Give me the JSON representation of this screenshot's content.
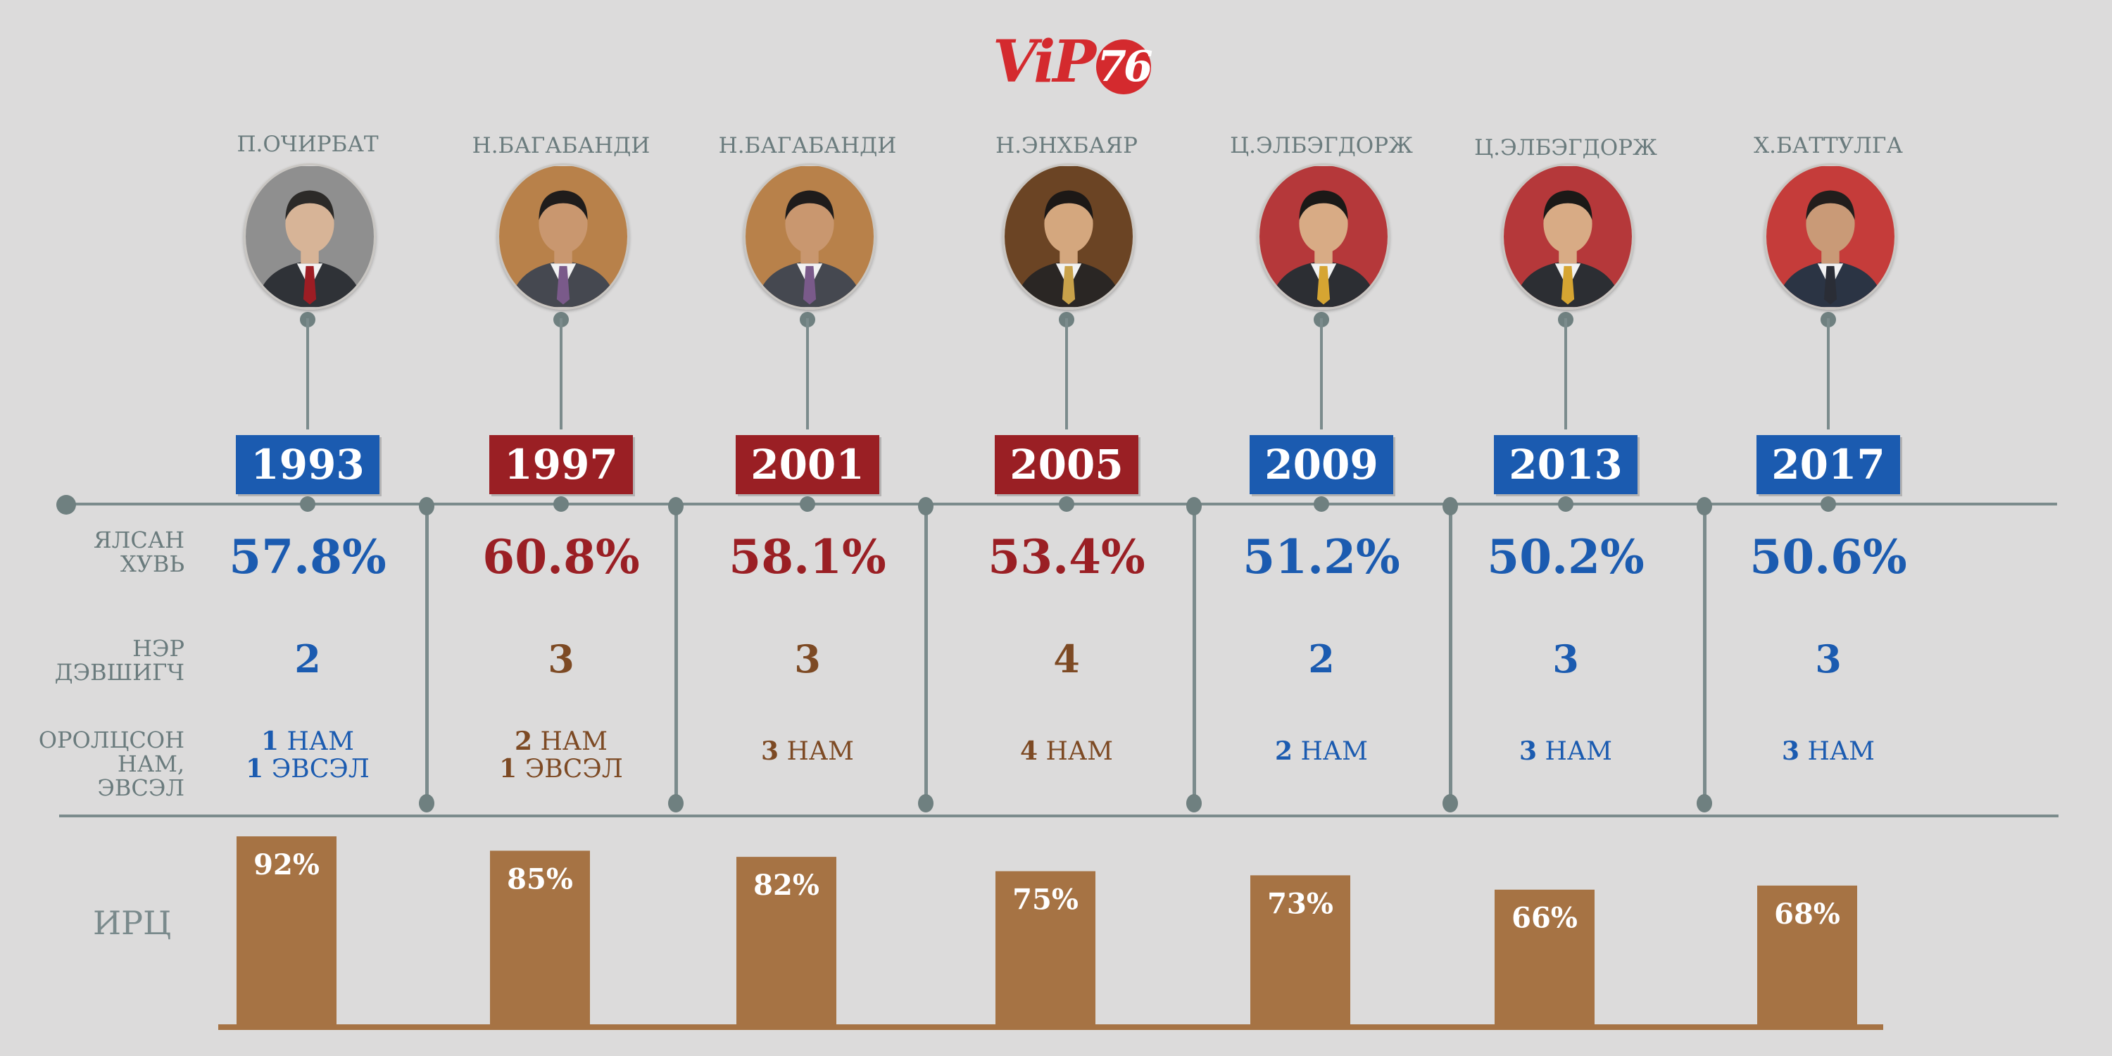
{
  "logo": {
    "text": "ViP",
    "number": "76"
  },
  "colors": {
    "blue": "#1b5bb0",
    "red": "#9a1f24",
    "brown": "#7d4a24",
    "bar": "#a67344",
    "line": "#7b8b8c",
    "label": "#6a7b7d"
  },
  "row_labels": {
    "win_percent": [
      "ЯЛСАН",
      "ХУВЬ"
    ],
    "candidates": [
      "НЭР",
      "ДЭВШИГЧ"
    ],
    "parties": [
      "ОРОЛЦСОН",
      "НАМ,",
      "ЭВСЭЛ"
    ],
    "turnout": "ИРЦ"
  },
  "elections": [
    {
      "name": "П.ОЧИРБАТ",
      "year": "1993",
      "year_color": "blue",
      "win_pct": "57.8%",
      "pct_color": "blue",
      "candidates": "2",
      "cand_color": "blue",
      "party_lines": [
        {
          "num": "1",
          "text": "НАМ"
        },
        {
          "num": "1",
          "text": "ЭВСЭЛ"
        }
      ],
      "party_color": "blue",
      "turnout_label": "92%",
      "portrait_icon": "portrait-ochirbat-icon"
    },
    {
      "name": "Н.БАГАБАНДИ",
      "year": "1997",
      "year_color": "red",
      "win_pct": "60.8%",
      "pct_color": "red",
      "candidates": "3",
      "cand_color": "brown",
      "party_lines": [
        {
          "num": "2",
          "text": "НАМ"
        },
        {
          "num": "1",
          "text": "ЭВСЭЛ"
        }
      ],
      "party_color": "brown",
      "turnout_label": "85%",
      "portrait_icon": "portrait-bagabandi-icon"
    },
    {
      "name": "Н.БАГАБАНДИ",
      "year": "2001",
      "year_color": "red",
      "win_pct": "58.1%",
      "pct_color": "red",
      "candidates": "3",
      "cand_color": "brown",
      "party_lines": [
        {
          "num": "3",
          "text": "НАМ"
        }
      ],
      "party_color": "brown",
      "turnout_label": "82%",
      "portrait_icon": "portrait-bagabandi-icon"
    },
    {
      "name": "Н.ЭНХБАЯР",
      "year": "2005",
      "year_color": "red",
      "win_pct": "53.4%",
      "pct_color": "red",
      "candidates": "4",
      "cand_color": "brown",
      "party_lines": [
        {
          "num": "4",
          "text": "НАМ"
        }
      ],
      "party_color": "brown",
      "turnout_label": "75%",
      "portrait_icon": "portrait-enkhbayar-icon"
    },
    {
      "name": "Ц.ЭЛБЭГДОРЖ",
      "year": "2009",
      "year_color": "blue",
      "win_pct": "51.2%",
      "pct_color": "blue",
      "candidates": "2",
      "cand_color": "blue",
      "party_lines": [
        {
          "num": "2",
          "text": "НАМ"
        }
      ],
      "party_color": "blue",
      "turnout_label": "73%",
      "portrait_icon": "portrait-elbegdorj-icon"
    },
    {
      "name": "Ц.ЭЛБЭГДОРЖ",
      "year": "2013",
      "year_color": "blue",
      "win_pct": "50.2%",
      "pct_color": "blue",
      "candidates": "3",
      "cand_color": "blue",
      "party_lines": [
        {
          "num": "3",
          "text": "НАМ"
        }
      ],
      "party_color": "blue",
      "turnout_label": "66%",
      "portrait_icon": "portrait-elbegdorj-icon"
    },
    {
      "name": "Х.БАТТУЛГА",
      "year": "2017",
      "year_color": "blue",
      "win_pct": "50.6%",
      "pct_color": "blue",
      "candidates": "3",
      "cand_color": "blue",
      "party_lines": [
        {
          "num": "3",
          "text": "НАМ"
        }
      ],
      "party_color": "blue",
      "turnout_label": "68%",
      "portrait_icon": "portrait-battulga-icon"
    }
  ],
  "chart_data": {
    "type": "bar",
    "categories": [
      "1993",
      "1997",
      "2001",
      "2005",
      "2009",
      "2013",
      "2017"
    ],
    "values": [
      92,
      85,
      82,
      75,
      73,
      66,
      68
    ],
    "value_labels": [
      "92%",
      "85%",
      "82%",
      "75%",
      "73%",
      "66%",
      "68%"
    ],
    "title": "",
    "xlabel": "",
    "ylabel": "ИРЦ",
    "ylim": [
      0,
      100
    ],
    "grid": false,
    "legend": "none"
  }
}
